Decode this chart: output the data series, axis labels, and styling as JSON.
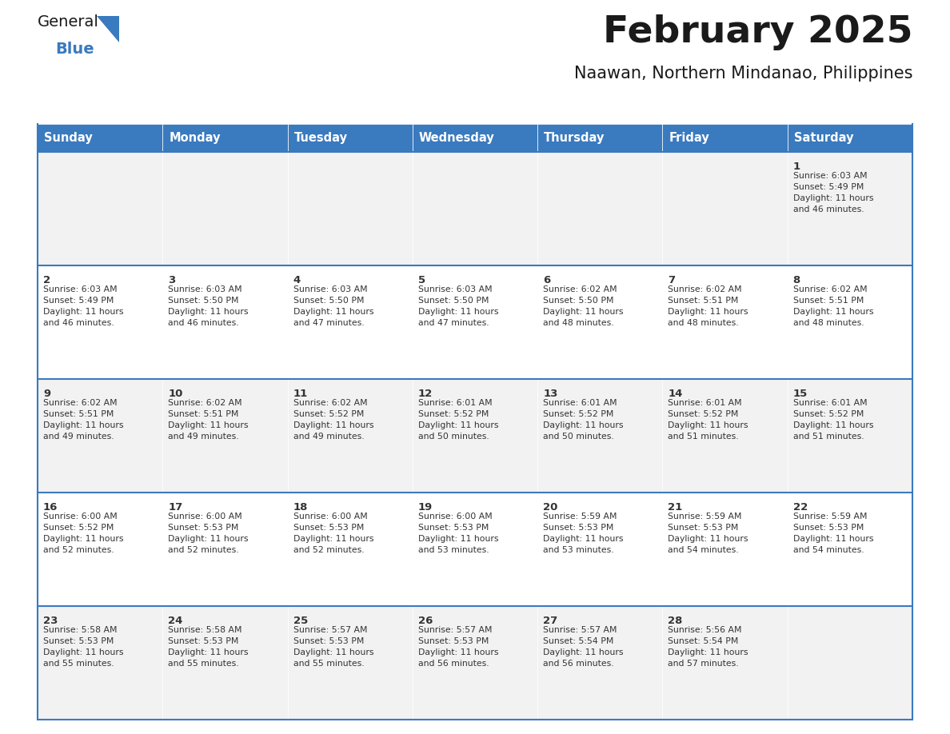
{
  "title": "February 2025",
  "subtitle": "Naawan, Northern Mindanao, Philippines",
  "header_color": "#3a7abf",
  "header_text_color": "#ffffff",
  "cell_bg_even": "#f2f2f2",
  "cell_bg_odd": "#ffffff",
  "border_color": "#3a7abf",
  "text_color": "#333333",
  "day_headers": [
    "Sunday",
    "Monday",
    "Tuesday",
    "Wednesday",
    "Thursday",
    "Friday",
    "Saturday"
  ],
  "title_color": "#1a1a1a",
  "subtitle_color": "#1a1a1a",
  "days": [
    {
      "day": 1,
      "col": 6,
      "row": 0,
      "sunrise": "6:03 AM",
      "sunset": "5:49 PM",
      "daylight": "11 hours and 46 minutes"
    },
    {
      "day": 2,
      "col": 0,
      "row": 1,
      "sunrise": "6:03 AM",
      "sunset": "5:49 PM",
      "daylight": "11 hours and 46 minutes"
    },
    {
      "day": 3,
      "col": 1,
      "row": 1,
      "sunrise": "6:03 AM",
      "sunset": "5:50 PM",
      "daylight": "11 hours and 46 minutes"
    },
    {
      "day": 4,
      "col": 2,
      "row": 1,
      "sunrise": "6:03 AM",
      "sunset": "5:50 PM",
      "daylight": "11 hours and 47 minutes"
    },
    {
      "day": 5,
      "col": 3,
      "row": 1,
      "sunrise": "6:03 AM",
      "sunset": "5:50 PM",
      "daylight": "11 hours and 47 minutes"
    },
    {
      "day": 6,
      "col": 4,
      "row": 1,
      "sunrise": "6:02 AM",
      "sunset": "5:50 PM",
      "daylight": "11 hours and 48 minutes"
    },
    {
      "day": 7,
      "col": 5,
      "row": 1,
      "sunrise": "6:02 AM",
      "sunset": "5:51 PM",
      "daylight": "11 hours and 48 minutes"
    },
    {
      "day": 8,
      "col": 6,
      "row": 1,
      "sunrise": "6:02 AM",
      "sunset": "5:51 PM",
      "daylight": "11 hours and 48 minutes"
    },
    {
      "day": 9,
      "col": 0,
      "row": 2,
      "sunrise": "6:02 AM",
      "sunset": "5:51 PM",
      "daylight": "11 hours and 49 minutes"
    },
    {
      "day": 10,
      "col": 1,
      "row": 2,
      "sunrise": "6:02 AM",
      "sunset": "5:51 PM",
      "daylight": "11 hours and 49 minutes"
    },
    {
      "day": 11,
      "col": 2,
      "row": 2,
      "sunrise": "6:02 AM",
      "sunset": "5:52 PM",
      "daylight": "11 hours and 49 minutes"
    },
    {
      "day": 12,
      "col": 3,
      "row": 2,
      "sunrise": "6:01 AM",
      "sunset": "5:52 PM",
      "daylight": "11 hours and 50 minutes"
    },
    {
      "day": 13,
      "col": 4,
      "row": 2,
      "sunrise": "6:01 AM",
      "sunset": "5:52 PM",
      "daylight": "11 hours and 50 minutes"
    },
    {
      "day": 14,
      "col": 5,
      "row": 2,
      "sunrise": "6:01 AM",
      "sunset": "5:52 PM",
      "daylight": "11 hours and 51 minutes"
    },
    {
      "day": 15,
      "col": 6,
      "row": 2,
      "sunrise": "6:01 AM",
      "sunset": "5:52 PM",
      "daylight": "11 hours and 51 minutes"
    },
    {
      "day": 16,
      "col": 0,
      "row": 3,
      "sunrise": "6:00 AM",
      "sunset": "5:52 PM",
      "daylight": "11 hours and 52 minutes"
    },
    {
      "day": 17,
      "col": 1,
      "row": 3,
      "sunrise": "6:00 AM",
      "sunset": "5:53 PM",
      "daylight": "11 hours and 52 minutes"
    },
    {
      "day": 18,
      "col": 2,
      "row": 3,
      "sunrise": "6:00 AM",
      "sunset": "5:53 PM",
      "daylight": "11 hours and 52 minutes"
    },
    {
      "day": 19,
      "col": 3,
      "row": 3,
      "sunrise": "6:00 AM",
      "sunset": "5:53 PM",
      "daylight": "11 hours and 53 minutes"
    },
    {
      "day": 20,
      "col": 4,
      "row": 3,
      "sunrise": "5:59 AM",
      "sunset": "5:53 PM",
      "daylight": "11 hours and 53 minutes"
    },
    {
      "day": 21,
      "col": 5,
      "row": 3,
      "sunrise": "5:59 AM",
      "sunset": "5:53 PM",
      "daylight": "11 hours and 54 minutes"
    },
    {
      "day": 22,
      "col": 6,
      "row": 3,
      "sunrise": "5:59 AM",
      "sunset": "5:53 PM",
      "daylight": "11 hours and 54 minutes"
    },
    {
      "day": 23,
      "col": 0,
      "row": 4,
      "sunrise": "5:58 AM",
      "sunset": "5:53 PM",
      "daylight": "11 hours and 55 minutes"
    },
    {
      "day": 24,
      "col": 1,
      "row": 4,
      "sunrise": "5:58 AM",
      "sunset": "5:53 PM",
      "daylight": "11 hours and 55 minutes"
    },
    {
      "day": 25,
      "col": 2,
      "row": 4,
      "sunrise": "5:57 AM",
      "sunset": "5:53 PM",
      "daylight": "11 hours and 55 minutes"
    },
    {
      "day": 26,
      "col": 3,
      "row": 4,
      "sunrise": "5:57 AM",
      "sunset": "5:53 PM",
      "daylight": "11 hours and 56 minutes"
    },
    {
      "day": 27,
      "col": 4,
      "row": 4,
      "sunrise": "5:57 AM",
      "sunset": "5:54 PM",
      "daylight": "11 hours and 56 minutes"
    },
    {
      "day": 28,
      "col": 5,
      "row": 4,
      "sunrise": "5:56 AM",
      "sunset": "5:54 PM",
      "daylight": "11 hours and 57 minutes"
    }
  ],
  "num_rows": 5,
  "logo_text_general": "General",
  "logo_text_blue": "Blue",
  "logo_color_general": "#1a1a1a",
  "logo_color_blue": "#3a7abf",
  "logo_triangle_color": "#3a7abf"
}
